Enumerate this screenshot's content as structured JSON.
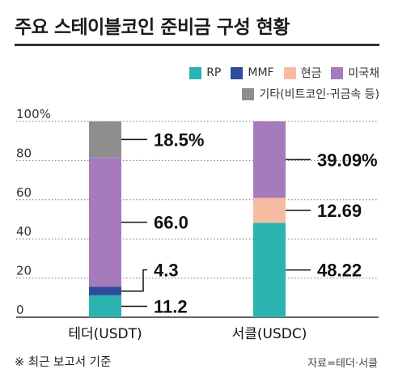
{
  "title": "주요 스테이블코인 준비금 구성 현황",
  "legend": [
    {
      "label": "RP",
      "color": "#2bb3b0"
    },
    {
      "label": "MMF",
      "color": "#2f4b9e"
    },
    {
      "label": "현금",
      "color": "#f6bca2"
    },
    {
      "label": "미국채",
      "color": "#a57bbd"
    },
    {
      "label": "기타(비트코인·귀금속 등)",
      "color": "#8e8e8e"
    }
  ],
  "chart_data": {
    "type": "bar",
    "stacked": true,
    "categories": [
      "테더(USDT)",
      "서클(USDC)"
    ],
    "ylim": [
      0,
      100
    ],
    "yticks": [
      0,
      20,
      40,
      60,
      80,
      100
    ],
    "ytick_labels": [
      "0",
      "20",
      "40",
      "60",
      "80",
      "100%"
    ],
    "series": [
      {
        "name": "RP",
        "values": [
          11.2,
          48.22
        ],
        "labels": [
          "11.2",
          "48.22"
        ],
        "color": "#2bb3b0"
      },
      {
        "name": "MMF",
        "values": [
          4.3,
          0
        ],
        "labels": [
          "4.3",
          ""
        ],
        "color": "#2f4b9e"
      },
      {
        "name": "현금",
        "values": [
          0,
          12.69
        ],
        "labels": [
          "",
          "12.69"
        ],
        "color": "#f6bca2"
      },
      {
        "name": "미국채",
        "values": [
          66.0,
          39.09
        ],
        "labels": [
          "66.0",
          "39.09%"
        ],
        "color": "#a57bbd"
      },
      {
        "name": "기타(비트코인·귀금속 등)",
        "values": [
          18.5,
          0
        ],
        "labels": [
          "18.5%",
          ""
        ],
        "color": "#8e8e8e"
      }
    ]
  },
  "note": "※ 최근 보고서 기준",
  "source": "자료=테더·서클"
}
